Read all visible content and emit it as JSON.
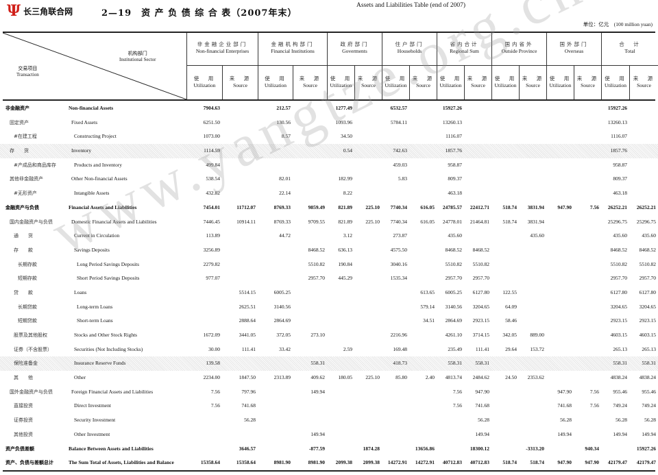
{
  "logo_text": "长三角联合网",
  "title_zh": "2—19　资 产 负 债 综 合 表（2007年末）",
  "title_en": "Assets and Liabilities Table (end of 2007)",
  "unit": "单位：亿元　(100 million yuan)",
  "watermark": "www.yangtze.org.cn",
  "corner": {
    "sector_zh": "机构部门",
    "sector_en": "Institutional Sector",
    "transaction_zh": "交易项目",
    "transaction_en": "Transaction"
  },
  "sub_labels": {
    "use_zh": "使　用",
    "use_en": "Utilization",
    "source_zh": "来　源",
    "source_en": "Source"
  },
  "groups": [
    {
      "zh": "非金融企业部门",
      "en": "Non-financial Enterprises"
    },
    {
      "zh": "金融机构部门",
      "en": "Financial Institutions"
    },
    {
      "zh": "政府部门",
      "en": "Goverments"
    },
    {
      "zh": "住户部门",
      "en": "Households"
    },
    {
      "zh": "省内合计",
      "en": "Regional Sum"
    },
    {
      "zh": "国内省外",
      "en": "Outside Province"
    },
    {
      "zh": "国外部门",
      "en": "Overseas"
    },
    {
      "zh": "合　计",
      "en": "Total"
    }
  ],
  "rows": [
    {
      "zh": "非金融资产",
      "en": "Non-financial Assets",
      "level": 0,
      "bold": true,
      "shaded": false,
      "values": [
        "7904.63",
        "",
        "212.57",
        "",
        "1277.49",
        "",
        "6532.57",
        "",
        "15927.26",
        "",
        "",
        "",
        "",
        "",
        "15927.26",
        ""
      ]
    },
    {
      "zh": "固定资产",
      "en": "Fixed Assets",
      "level": 1,
      "bold": false,
      "shaded": false,
      "values": [
        "6251.50",
        "",
        "130.56",
        "",
        "1093.96",
        "",
        "5784.11",
        "",
        "13260.13",
        "",
        "",
        "",
        "",
        "",
        "13260.13",
        ""
      ]
    },
    {
      "zh": "#在建工程",
      "en": "Constructing Project",
      "level": 2,
      "bold": false,
      "shaded": false,
      "values": [
        "1073.00",
        "",
        "8.57",
        "",
        "34.50",
        "",
        "",
        "",
        "1116.07",
        "",
        "",
        "",
        "",
        "",
        "1116.07",
        ""
      ]
    },
    {
      "zh": "存　　货",
      "en": "Inventory",
      "level": 1,
      "bold": false,
      "shaded": true,
      "values": [
        "1114.59",
        "",
        "",
        "",
        "0.54",
        "",
        "742.63",
        "",
        "1857.76",
        "",
        "",
        "",
        "",
        "",
        "1857.76",
        ""
      ]
    },
    {
      "zh": "#产成品和商品库存",
      "en": "Products and Inventory",
      "level": 2,
      "bold": false,
      "shaded": false,
      "values": [
        "499.84",
        "",
        "",
        "",
        "",
        "",
        "459.03",
        "",
        "958.87",
        "",
        "",
        "",
        "",
        "",
        "958.87",
        ""
      ]
    },
    {
      "zh": "其他非金融资产",
      "en": "Other Non-financial Assets",
      "level": 1,
      "bold": false,
      "shaded": false,
      "values": [
        "538.54",
        "",
        "82.01",
        "",
        "182.99",
        "",
        "5.83",
        "",
        "809.37",
        "",
        "",
        "",
        "",
        "",
        "809.37",
        ""
      ]
    },
    {
      "zh": "#无形资产",
      "en": "Intangible Assets",
      "level": 2,
      "bold": false,
      "shaded": false,
      "values": [
        "432.82",
        "",
        "22.14",
        "",
        "8.22",
        "",
        "",
        "",
        "463.18",
        "",
        "",
        "",
        "",
        "",
        "463.18",
        ""
      ]
    },
    {
      "zh": "金融资产与负债",
      "en": "Financial Assets and Liabilities",
      "level": 0,
      "bold": true,
      "shaded": false,
      "values": [
        "7454.01",
        "11712.07",
        "8769.33",
        "9859.49",
        "821.89",
        "225.10",
        "7740.34",
        "616.05",
        "24785.57",
        "22412.71",
        "518.74",
        "3831.94",
        "947.90",
        "7.56",
        "26252.21",
        "26252.21"
      ]
    },
    {
      "zh": "国内金融资产与负债",
      "en": "Domestic Financial Assets and Liabilities",
      "level": 1,
      "bold": false,
      "shaded": false,
      "values": [
        "7446.45",
        "10914.11",
        "8769.33",
        "9709.55",
        "821.89",
        "225.10",
        "7740.34",
        "616.05",
        "24778.01",
        "21464.81",
        "518.74",
        "3831.94",
        "",
        "",
        "25296.75",
        "25296.75"
      ]
    },
    {
      "zh": "通　　货",
      "en": "Current in Circulation",
      "level": 2,
      "bold": false,
      "shaded": false,
      "values": [
        "113.89",
        "",
        "44.72",
        "",
        "3.12",
        "",
        "273.87",
        "",
        "435.60",
        "",
        "",
        "435.60",
        "",
        "",
        "435.60",
        "435.60"
      ]
    },
    {
      "zh": "存　　款",
      "en": "Savings Deposits",
      "level": 2,
      "bold": false,
      "shaded": false,
      "values": [
        "3256.89",
        "",
        "",
        "8468.52",
        "636.13",
        "",
        "4575.50",
        "",
        "8468.52",
        "8468.52",
        "",
        "",
        "",
        "",
        "8468.52",
        "8468.52"
      ]
    },
    {
      "zh": "长期存款",
      "en": "Long Period Savings Deposits",
      "level": 3,
      "bold": false,
      "shaded": false,
      "values": [
        "2279.82",
        "",
        "",
        "5510.82",
        "190.84",
        "",
        "3040.16",
        "",
        "5510.82",
        "5510.82",
        "",
        "",
        "",
        "",
        "5510.82",
        "5510.82"
      ]
    },
    {
      "zh": "短期存款",
      "en": "Short Period Savings Deposits",
      "level": 3,
      "bold": false,
      "shaded": false,
      "values": [
        "977.07",
        "",
        "",
        "2957.70",
        "445.29",
        "",
        "1535.34",
        "",
        "2957.70",
        "2957.70",
        "",
        "",
        "",
        "",
        "2957.70",
        "2957.70"
      ]
    },
    {
      "zh": "贷　　款",
      "en": "Loans",
      "level": 2,
      "bold": false,
      "shaded": false,
      "values": [
        "",
        "5514.15",
        "6005.25",
        "",
        "",
        "",
        "",
        "613.65",
        "6005.25",
        "6127.80",
        "122.55",
        "",
        "",
        "",
        "6127.80",
        "6127.80"
      ]
    },
    {
      "zh": "长期贷款",
      "en": "Long-term Loans",
      "level": 3,
      "bold": false,
      "shaded": false,
      "values": [
        "",
        "2625.51",
        "3140.56",
        "",
        "",
        "",
        "",
        "579.14",
        "3140.56",
        "3204.65",
        "64.09",
        "",
        "",
        "",
        "3204.65",
        "3204.65"
      ]
    },
    {
      "zh": "短期贷款",
      "en": "Short-term Loans",
      "level": 3,
      "bold": false,
      "shaded": false,
      "values": [
        "",
        "2888.64",
        "2864.69",
        "",
        "",
        "",
        "",
        "34.51",
        "2864.69",
        "2923.15",
        "58.46",
        "",
        "",
        "",
        "2923.15",
        "2923.15"
      ]
    },
    {
      "zh": "股票及其他股权",
      "en": "Stocks and Other Stock Rights",
      "level": 2,
      "bold": false,
      "shaded": false,
      "values": [
        "1672.09",
        "3441.05",
        "372.05",
        "273.10",
        "",
        "",
        "2216.96",
        "",
        "4261.10",
        "3714.15",
        "342.05",
        "889.00",
        "",
        "",
        "4603.15",
        "4603.15"
      ]
    },
    {
      "zh": "证券（不含股票）",
      "en": "Securities (Not Including Stocks)",
      "level": 2,
      "bold": false,
      "shaded": false,
      "values": [
        "30.00",
        "111.41",
        "33.42",
        "",
        "2.59",
        "",
        "169.48",
        "",
        "235.49",
        "111.41",
        "29.64",
        "153.72",
        "",
        "",
        "265.13",
        "265.13"
      ]
    },
    {
      "zh": "保险准备金",
      "en": "Insurance Reserve Funds",
      "level": 2,
      "bold": false,
      "shaded": true,
      "values": [
        "139.58",
        "",
        "",
        "558.31",
        "",
        "",
        "418.73",
        "",
        "558.31",
        "558.31",
        "",
        "",
        "",
        "",
        "558.31",
        "558.31"
      ]
    },
    {
      "zh": "其　　他",
      "en": "Other",
      "level": 2,
      "bold": false,
      "shaded": false,
      "values": [
        "2234.00",
        "1847.50",
        "2313.89",
        "409.62",
        "180.05",
        "225.10",
        "85.80",
        "2.40",
        "4813.74",
        "2484.62",
        "24.50",
        "2353.62",
        "",
        "",
        "4838.24",
        "4838.24"
      ]
    },
    {
      "zh": "国外金融资产与负债",
      "en": "Foreign Financial Assets and Liabilities",
      "level": 1,
      "bold": false,
      "shaded": false,
      "values": [
        "7.56",
        "797.96",
        "",
        "149.94",
        "",
        "",
        "",
        "",
        "7.56",
        "947.90",
        "",
        "",
        "947.90",
        "7.56",
        "955.46",
        "955.46"
      ]
    },
    {
      "zh": "直接投资",
      "en": "Direct Investment",
      "level": 2,
      "bold": false,
      "shaded": false,
      "values": [
        "7.56",
        "741.68",
        "",
        "",
        "",
        "",
        "",
        "",
        "7.56",
        "741.68",
        "",
        "",
        "741.68",
        "7.56",
        "749.24",
        "749.24"
      ]
    },
    {
      "zh": "证券投资",
      "en": "Security Investment",
      "level": 2,
      "bold": false,
      "shaded": false,
      "values": [
        "",
        "56.28",
        "",
        "",
        "",
        "",
        "",
        "",
        "",
        "56.28",
        "",
        "",
        "56.28",
        "",
        "56.28",
        "56.28"
      ]
    },
    {
      "zh": "其他投资",
      "en": "Other Investment",
      "level": 2,
      "bold": false,
      "shaded": false,
      "values": [
        "",
        "",
        "",
        "149.94",
        "",
        "",
        "",
        "",
        "",
        "149.94",
        "",
        "",
        "149.94",
        "",
        "149.94",
        "149.94"
      ]
    },
    {
      "zh": "资产负债差额",
      "en": "Balance Between Assets and Liabilities",
      "level": 0,
      "bold": true,
      "shaded": false,
      "values": [
        "",
        "3646.57",
        "",
        "-877.59",
        "",
        "1874.28",
        "",
        "13656.86",
        "",
        "18300.12",
        "",
        "-3313.20",
        "",
        "940.34",
        "",
        "15927.26"
      ]
    },
    {
      "zh": "资产、负债与差额总计",
      "en": "The Sum Total of Assets, Liabilities and Balance",
      "level": 0,
      "bold": true,
      "shaded": false,
      "values": [
        "15358.64",
        "15358.64",
        "8981.90",
        "8981.90",
        "2099.38",
        "2099.38",
        "14272.91",
        "14272.91",
        "40712.83",
        "40712.83",
        "518.74",
        "518.74",
        "947.90",
        "947.90",
        "42179.47",
        "42179.47"
      ]
    }
  ]
}
